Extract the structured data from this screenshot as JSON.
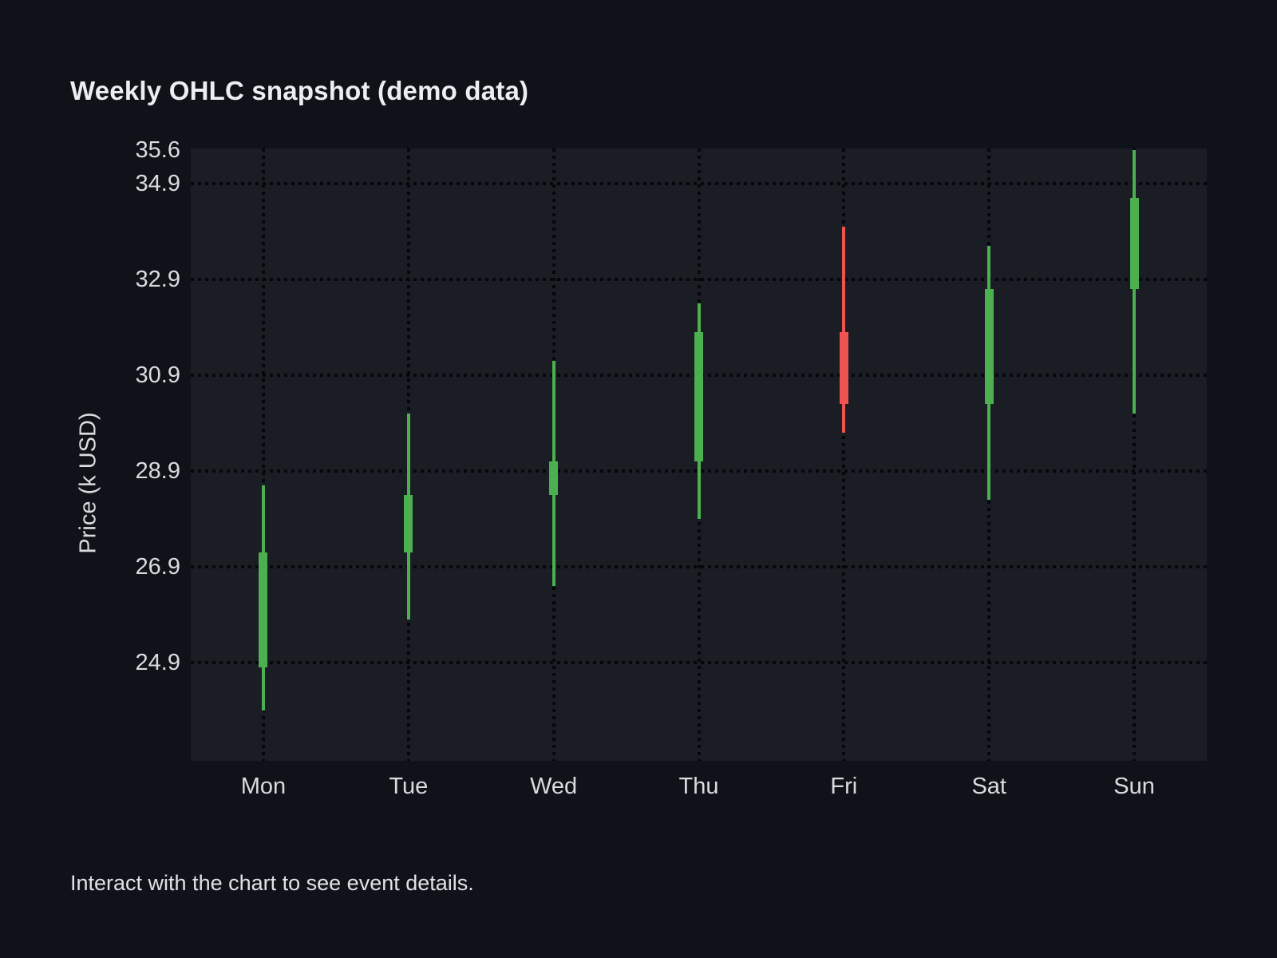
{
  "page": {
    "footer": "Interact with the chart to see event details."
  },
  "chart_data": {
    "type": "candlestick",
    "title": "Weekly OHLC snapshot (demo data)",
    "xlabel": "",
    "ylabel": "Price (k USD)",
    "categories": [
      "Mon",
      "Tue",
      "Wed",
      "Thu",
      "Fri",
      "Sat",
      "Sun"
    ],
    "series": [
      {
        "name": "Weekly OHLC",
        "points": [
          {
            "day": "Mon",
            "open": 24.8,
            "high": 28.6,
            "low": 23.9,
            "close": 27.2,
            "direction": "up"
          },
          {
            "day": "Tue",
            "open": 27.2,
            "high": 30.1,
            "low": 25.8,
            "close": 28.4,
            "direction": "up"
          },
          {
            "day": "Wed",
            "open": 28.4,
            "high": 31.2,
            "low": 26.5,
            "close": 29.1,
            "direction": "up"
          },
          {
            "day": "Thu",
            "open": 29.1,
            "high": 32.4,
            "low": 27.9,
            "close": 31.8,
            "direction": "up"
          },
          {
            "day": "Fri",
            "open": 31.8,
            "high": 34.0,
            "low": 29.7,
            "close": 30.3,
            "direction": "down"
          },
          {
            "day": "Sat",
            "open": 30.3,
            "high": 33.6,
            "low": 28.3,
            "close": 32.7,
            "direction": "up"
          },
          {
            "day": "Sun",
            "open": 32.7,
            "high": 35.6,
            "low": 30.1,
            "close": 34.6,
            "direction": "up"
          }
        ]
      }
    ],
    "y_ticks": [
      35.6,
      34.9,
      32.9,
      30.9,
      28.9,
      26.9,
      24.9
    ],
    "ylim": [
      22.85,
      35.63
    ],
    "grid": {
      "horizontal": "dotted at y ticks (none at 35.6)",
      "vertical": "dotted at each day"
    },
    "legend": "none",
    "colors": {
      "up": "#4caf50",
      "down": "#ef5350",
      "grid": "#05070a",
      "plot_background": "#1a1d24",
      "page_background": "#0f1218",
      "text": "#d9dcdf",
      "title_text": "#eceef1"
    }
  }
}
